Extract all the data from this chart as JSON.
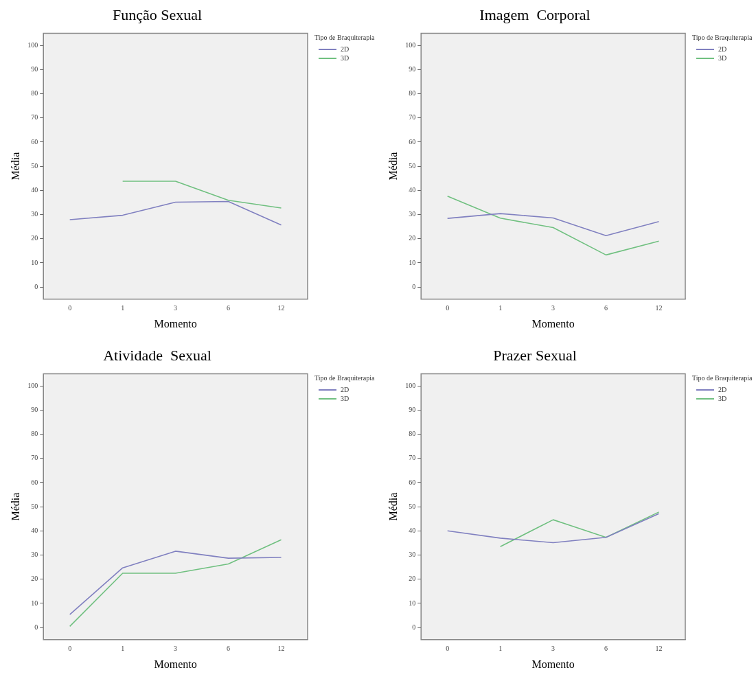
{
  "chart_data": [
    {
      "type": "line",
      "title": "Função Sexual",
      "xlabel": "Momento",
      "ylabel": "Média",
      "legend_title": "Tipo de Braquiterapia",
      "legend": "right",
      "grid": false,
      "marker": "none",
      "line_style": "solid",
      "categories": [
        "0",
        "1",
        "3",
        "6",
        "12"
      ],
      "ylim": [
        -5,
        105
      ],
      "yticks": [
        0,
        10,
        20,
        30,
        40,
        50,
        60,
        70,
        80,
        90,
        100
      ],
      "series": [
        {
          "name": "2D",
          "color": "#8080c0",
          "values": [
            27.9,
            29.7,
            35.1,
            35.4,
            25.7
          ]
        },
        {
          "name": "3D",
          "color": "#70c080",
          "values": [
            null,
            43.8,
            43.8,
            35.9,
            32.7
          ]
        }
      ]
    },
    {
      "type": "line",
      "title": "Imagem  Corporal",
      "xlabel": "Momento",
      "ylabel": "Média",
      "legend_title": "Tipo de Braquiterapia",
      "legend": "right",
      "grid": false,
      "marker": "none",
      "line_style": "solid",
      "categories": [
        "0",
        "1",
        "3",
        "6",
        "12"
      ],
      "ylim": [
        -5,
        105
      ],
      "yticks": [
        0,
        10,
        20,
        30,
        40,
        50,
        60,
        70,
        80,
        90,
        100
      ],
      "series": [
        {
          "name": "2D",
          "color": "#8080c0",
          "values": [
            28.4,
            30.4,
            28.6,
            21.3,
            27.1
          ]
        },
        {
          "name": "3D",
          "color": "#70c080",
          "values": [
            37.6,
            28.5,
            24.6,
            13.3,
            19.0
          ]
        }
      ]
    },
    {
      "type": "line",
      "title": "Atividade  Sexual",
      "xlabel": "Momento",
      "ylabel": "Média",
      "legend_title": "Tipo de Braquiterapia",
      "legend": "right",
      "grid": false,
      "marker": "none",
      "line_style": "solid",
      "categories": [
        "0",
        "1",
        "3",
        "6",
        "12"
      ],
      "ylim": [
        -5,
        105
      ],
      "yticks": [
        0,
        10,
        20,
        30,
        40,
        50,
        60,
        70,
        80,
        90,
        100
      ],
      "series": [
        {
          "name": "2D",
          "color": "#8080c0",
          "values": [
            5.4,
            24.7,
            31.6,
            28.7,
            29.0
          ]
        },
        {
          "name": "3D",
          "color": "#70c080",
          "values": [
            0.5,
            22.5,
            22.5,
            26.3,
            36.3
          ]
        }
      ]
    },
    {
      "type": "line",
      "title": "Prazer Sexual",
      "xlabel": "Momento",
      "ylabel": "Média",
      "legend_title": "Tipo de Braquiterapia",
      "legend": "right",
      "grid": false,
      "marker": "none",
      "line_style": "solid",
      "categories": [
        "0",
        "1",
        "3",
        "6",
        "12"
      ],
      "ylim": [
        -5,
        105
      ],
      "yticks": [
        0,
        10,
        20,
        30,
        40,
        50,
        60,
        70,
        80,
        90,
        100
      ],
      "series": [
        {
          "name": "2D",
          "color": "#8080c0",
          "values": [
            40.0,
            37.0,
            35.1,
            37.3,
            47.1
          ]
        },
        {
          "name": "3D",
          "color": "#70c080",
          "values": [
            null,
            33.5,
            44.6,
            37.3,
            47.8
          ]
        }
      ]
    }
  ]
}
